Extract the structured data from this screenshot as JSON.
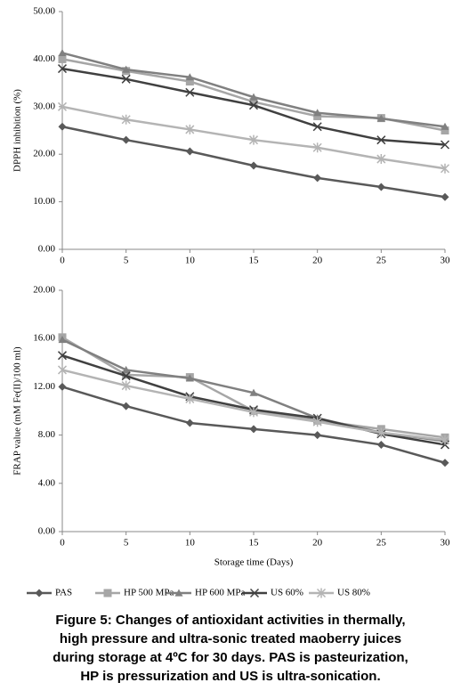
{
  "chart_data": [
    {
      "type": "line",
      "y_label": "DPPH  inhibition (%)",
      "x": [
        0,
        5,
        10,
        15,
        20,
        25,
        30
      ],
      "xlim": [
        0,
        30
      ],
      "xticks": [
        0,
        5,
        10,
        15,
        20,
        25,
        30
      ],
      "ylim": [
        0,
        50
      ],
      "yticks": [
        {
          "value": 0,
          "label": "0.00"
        },
        {
          "value": 10,
          "label": "10.00"
        },
        {
          "value": 20,
          "label": "20.00"
        },
        {
          "value": 30,
          "label": "30.00"
        },
        {
          "value": 40,
          "label": "40.00"
        },
        {
          "value": 50,
          "label": "50.00"
        }
      ],
      "legend": "bottom",
      "series": [
        {
          "name": "PAS",
          "color": "#595959",
          "marker": "diamond",
          "values": [
            25.8,
            23,
            20.6,
            17.6,
            15,
            13.1,
            11
          ]
        },
        {
          "name": "HP 500 MPa",
          "color": "#a6a6a6",
          "marker": "square",
          "values": [
            40,
            37.5,
            35.3,
            31,
            28,
            27.6,
            25
          ]
        },
        {
          "name": "HP 600 MPa",
          "color": "#808080",
          "marker": "triangle",
          "values": [
            41.3,
            37.8,
            36.2,
            32,
            28.7,
            27.5,
            25.8
          ]
        },
        {
          "name": "US 60%",
          "color": "#404040",
          "marker": "x",
          "values": [
            38,
            35.8,
            33,
            30.3,
            25.8,
            23,
            22
          ]
        },
        {
          "name": "US 80%",
          "color": "#b4b4b4",
          "marker": "star",
          "values": [
            30,
            27.3,
            25.2,
            23,
            21.4,
            19,
            17
          ]
        }
      ]
    },
    {
      "type": "line",
      "y_label": "FRAP value (mM Fe(II)/100  ml)",
      "x_label": "Storage time (Days)",
      "x": [
        0,
        5,
        10,
        15,
        20,
        25,
        30
      ],
      "xlim": [
        0,
        30
      ],
      "xticks": [
        0,
        5,
        10,
        15,
        20,
        25,
        30
      ],
      "ylim": [
        0,
        20
      ],
      "yticks": [
        {
          "value": 0,
          "label": "0.00"
        },
        {
          "value": 4,
          "label": "4.00"
        },
        {
          "value": 8,
          "label": "8.00"
        },
        {
          "value": 12,
          "label": "12.00"
        },
        {
          "value": 16,
          "label": "16.00"
        },
        {
          "value": 20,
          "label": "20.00"
        }
      ],
      "series": [
        {
          "color": "#595959",
          "marker": "diamond",
          "values": [
            12,
            10.4,
            9,
            8.5,
            8,
            7.2,
            5.7
          ]
        },
        {
          "color": "#a6a6a6",
          "marker": "square",
          "values": [
            16.1,
            13,
            12.8,
            10,
            9.2,
            8.5,
            7.8
          ]
        },
        {
          "color": "#808080",
          "marker": "triangle",
          "values": [
            15.9,
            13.4,
            12.7,
            11.5,
            9.4,
            8.2,
            7.5
          ]
        },
        {
          "color": "#404040",
          "marker": "x",
          "values": [
            14.6,
            12.9,
            11.2,
            10.1,
            9.4,
            8.1,
            7.2
          ]
        },
        {
          "color": "#b4b4b4",
          "marker": "star",
          "values": [
            13.4,
            12.1,
            11,
            9.9,
            9.1,
            8.2,
            7.6
          ]
        }
      ]
    }
  ],
  "caption": [
    "Figure 5: Changes of antioxidant activities in thermally,",
    "high pressure and ultra-sonic treated maoberry juices",
    "during storage at 4ºC for 30 days. PAS is pasteurization,",
    "HP is pressurization and US is ultra-sonication."
  ]
}
